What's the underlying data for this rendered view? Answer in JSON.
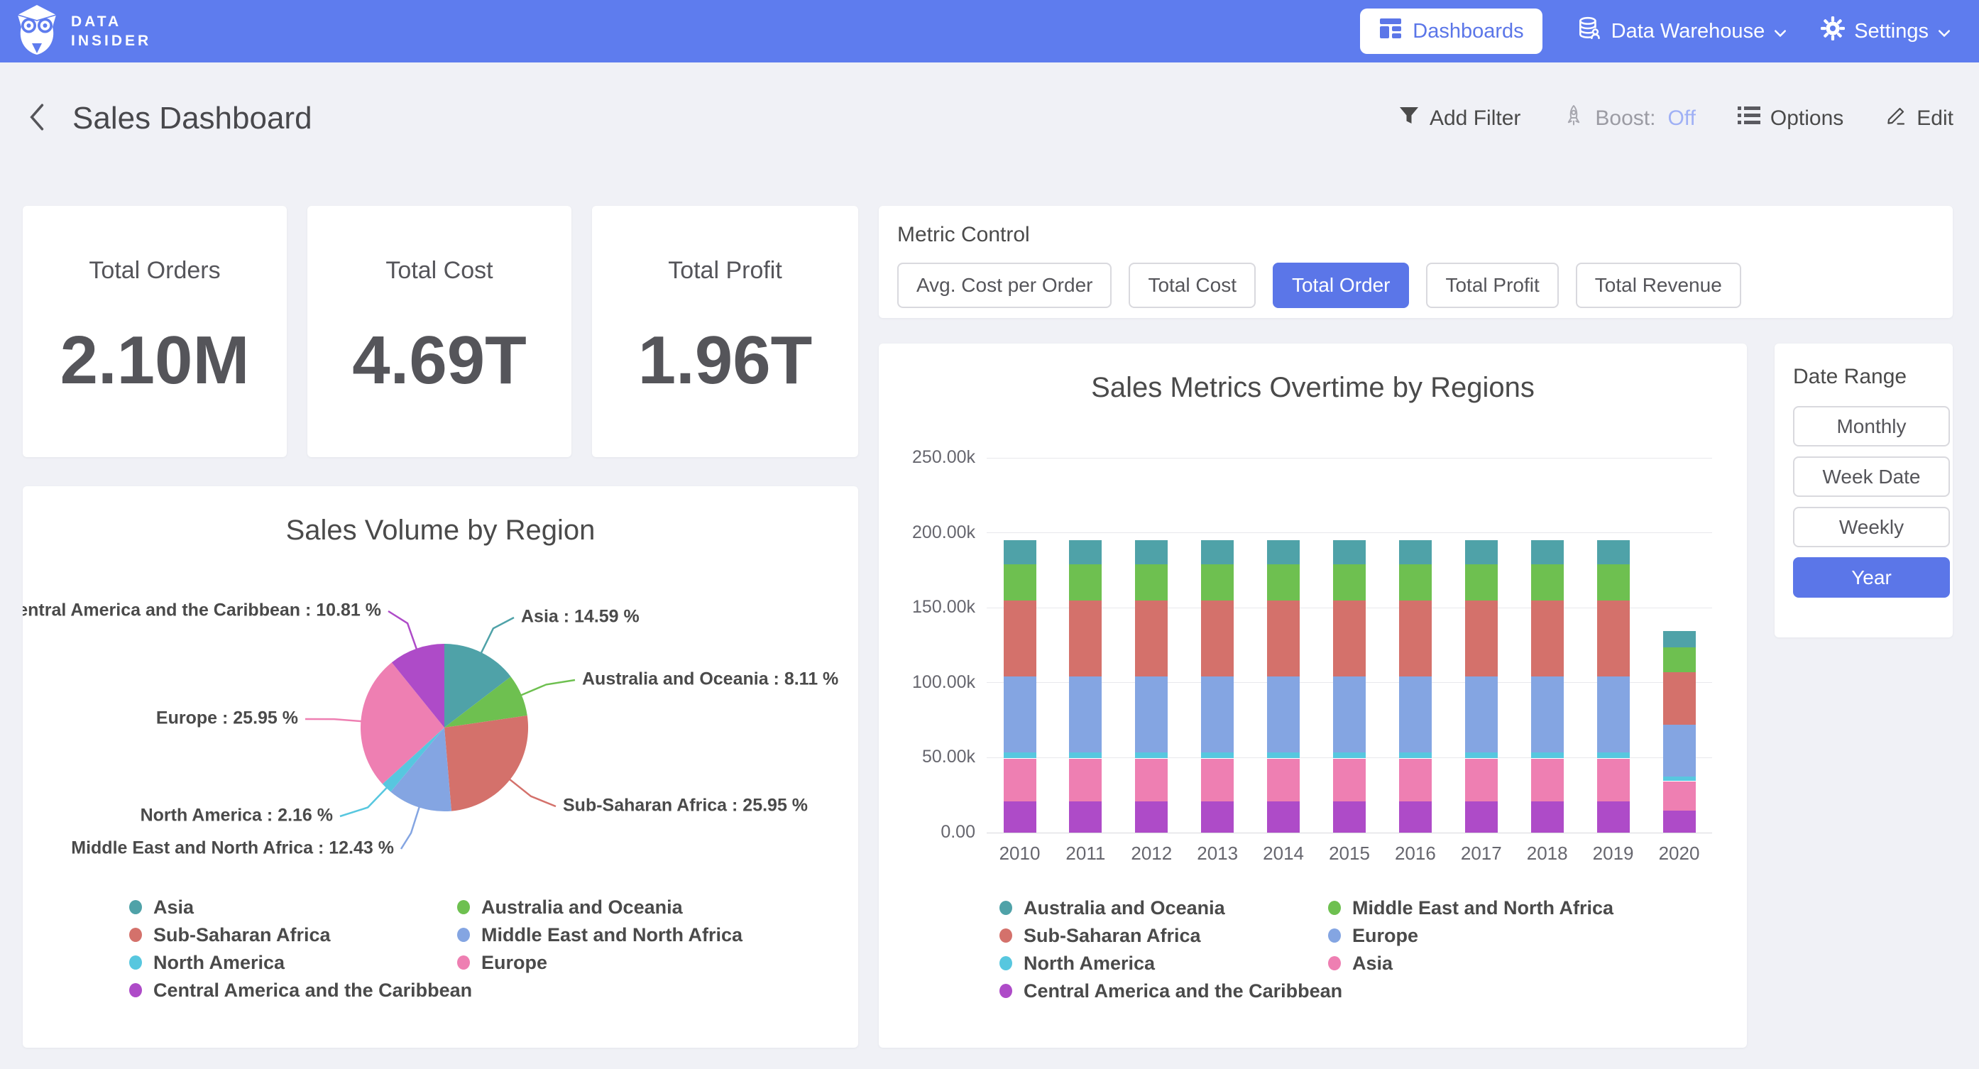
{
  "nav": {
    "brand": {
      "line1": "DATA",
      "line2": "INSIDER"
    },
    "items": [
      {
        "label": "Dashboards",
        "active": true
      },
      {
        "label": "Data Warehouse",
        "dropdown": true
      },
      {
        "label": "Settings",
        "dropdown": true
      }
    ]
  },
  "header": {
    "title": "Sales Dashboard",
    "actions": {
      "add_filter": "Add Filter",
      "boost_label": "Boost:",
      "boost_state": "Off",
      "options": "Options",
      "edit": "Edit"
    }
  },
  "kpis": [
    {
      "label": "Total Orders",
      "value": "2.10M"
    },
    {
      "label": "Total Cost",
      "value": "4.69T"
    },
    {
      "label": "Total Profit",
      "value": "1.96T"
    }
  ],
  "metric_control": {
    "label": "Metric Control",
    "options": [
      {
        "label": "Avg. Cost per Order",
        "selected": false
      },
      {
        "label": "Total Cost",
        "selected": false
      },
      {
        "label": "Total Order",
        "selected": true
      },
      {
        "label": "Total Profit",
        "selected": false
      },
      {
        "label": "Total Revenue",
        "selected": false
      }
    ]
  },
  "date_range": {
    "label": "Date Range",
    "options": [
      {
        "label": "Monthly",
        "selected": false
      },
      {
        "label": "Week Date",
        "selected": false
      },
      {
        "label": "Weekly",
        "selected": false
      },
      {
        "label": "Year",
        "selected": true
      }
    ]
  },
  "colors": {
    "navbar": "#5E7CEE",
    "accent": "#5B76E8",
    "boost_off": "#9FB0F5"
  },
  "chart_data": [
    {
      "type": "pie",
      "title": "Sales Volume by Region",
      "value_suffix": " %",
      "start_angle": "top",
      "direction": "clockwise",
      "slices": [
        {
          "label": "Asia",
          "value": 14.59,
          "color": "#4FA2A8"
        },
        {
          "label": "Australia and Oceania",
          "value": 8.11,
          "color": "#6EC050"
        },
        {
          "label": "Sub-Saharan Africa",
          "value": 25.95,
          "color": "#D4716B"
        },
        {
          "label": "Middle East and North Africa",
          "value": 12.43,
          "color": "#84A5E2"
        },
        {
          "label": "North America",
          "value": 2.16,
          "color": "#57C7DF"
        },
        {
          "label": "Europe",
          "value": 25.95,
          "color": "#EE7FB2"
        },
        {
          "label": "Central America and the Caribbean",
          "value": 10.81,
          "color": "#AE4BC8"
        }
      ],
      "legend_position": "bottom",
      "legend_columns": [
        [
          "Asia",
          "Sub-Saharan Africa",
          "North America",
          "Central America and the Caribbean"
        ],
        [
          "Australia and Oceania",
          "Middle East and North Africa",
          "Europe"
        ]
      ]
    },
    {
      "type": "bar",
      "stacked": true,
      "stack_order": "bottom-to-top",
      "title": "Sales Metrics Overtime by Regions",
      "categories": [
        "2010",
        "2011",
        "2012",
        "2013",
        "2014",
        "2015",
        "2016",
        "2017",
        "2018",
        "2019",
        "2020"
      ],
      "series": [
        {
          "name": "Central America and the Caribbean",
          "color": "#AE4BC8",
          "values": [
            21100,
            21100,
            21100,
            21100,
            21100,
            21100,
            21100,
            21100,
            21100,
            21100,
            14600
          ]
        },
        {
          "name": "Asia",
          "color": "#EE7FB2",
          "values": [
            28400,
            28400,
            28400,
            28400,
            28400,
            28400,
            28400,
            28400,
            28400,
            28400,
            19700
          ]
        },
        {
          "name": "North America",
          "color": "#57C7DF",
          "values": [
            4200,
            4200,
            4200,
            4200,
            4200,
            4200,
            4200,
            4200,
            4200,
            4200,
            2900
          ]
        },
        {
          "name": "Europe",
          "color": "#84A5E2",
          "values": [
            50600,
            50600,
            50600,
            50600,
            50600,
            50600,
            50600,
            50600,
            50600,
            50600,
            34900
          ]
        },
        {
          "name": "Sub-Saharan Africa",
          "color": "#D4716B",
          "values": [
            50600,
            50600,
            50600,
            50600,
            50600,
            50600,
            50600,
            50600,
            50600,
            50600,
            34900
          ]
        },
        {
          "name": "Middle East and North Africa",
          "color": "#6EC050",
          "values": [
            24200,
            24200,
            24200,
            24200,
            24200,
            24200,
            24200,
            24200,
            24200,
            24200,
            16700
          ]
        },
        {
          "name": "Australia and Oceania",
          "color": "#4FA2A8",
          "values": [
            15800,
            15800,
            15800,
            15800,
            15800,
            15800,
            15800,
            15800,
            15800,
            15800,
            10900
          ]
        }
      ],
      "ylim": [
        0,
        250000
      ],
      "yticks": [
        "0.00",
        "50.00k",
        "100.00k",
        "150.00k",
        "200.00k",
        "250.00k"
      ],
      "grid": true,
      "legend_position": "bottom",
      "legend_columns": [
        [
          "Australia and Oceania",
          "Sub-Saharan Africa",
          "North America",
          "Central America and the Caribbean"
        ],
        [
          "Middle East and North Africa",
          "Europe",
          "Asia"
        ]
      ]
    }
  ]
}
